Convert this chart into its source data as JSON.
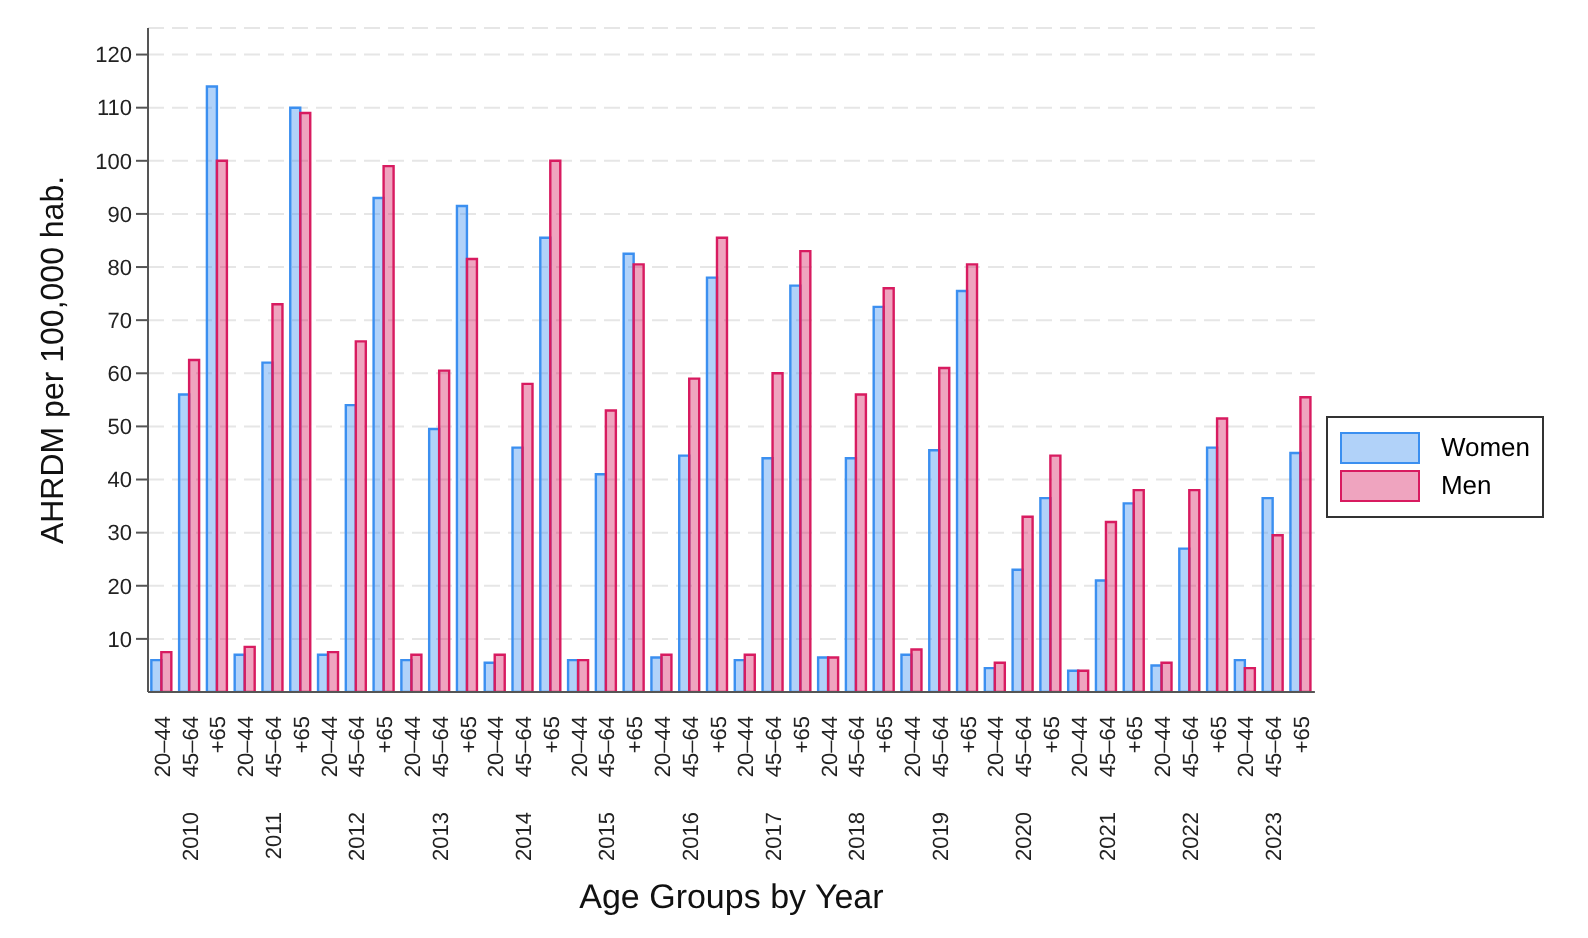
{
  "chart_data": {
    "type": "bar",
    "xlabel": "Age Groups by Year",
    "ylabel": "AHRDM per 100,000 hab.",
    "categories": [
      "20–44",
      "45–64",
      "+65",
      "20–44",
      "45–64",
      "+65",
      "20–44",
      "45–64",
      "+65",
      "20–44",
      "45–64",
      "+65",
      "20–44",
      "45–64",
      "+65",
      "20–44",
      "45–64",
      "+65",
      "20–44",
      "45–64",
      "+65",
      "20–44",
      "45–64",
      "+65",
      "20–44",
      "45–64",
      "+65",
      "20–44",
      "45–64",
      "+65",
      "20–44",
      "45–64",
      "+65",
      "20–44",
      "45–64",
      "+65",
      "20–44",
      "45–64",
      "+65",
      "20–44",
      "45–64",
      "+65"
    ],
    "annotations": [
      "2010",
      "2011",
      "2012",
      "2013",
      "2014",
      "2015",
      "2016",
      "2017",
      "2018",
      "2019",
      "2020",
      "2021",
      "2022",
      "2023"
    ],
    "series": [
      {
        "name": "Women",
        "color": "#3b8ff0",
        "values": [
          6,
          56,
          114,
          7,
          62,
          110,
          7,
          54,
          93,
          6,
          49.5,
          91.5,
          5.5,
          46,
          85.5,
          6,
          41,
          82.5,
          6.5,
          44.5,
          78,
          6,
          44,
          76.5,
          6.5,
          44,
          72.5,
          7,
          45.5,
          75.5,
          4.5,
          23,
          36.5,
          4,
          21,
          35.5,
          5,
          27,
          46,
          6,
          36.5,
          45
        ]
      },
      {
        "name": "Men",
        "color": "#d81b60",
        "values": [
          7.5,
          62.5,
          100,
          8.5,
          73,
          109,
          7.5,
          66,
          99,
          7,
          60.5,
          81.5,
          7,
          58,
          100,
          6,
          53,
          80.5,
          7,
          59,
          85.5,
          7,
          60,
          83,
          6.5,
          56,
          76,
          8,
          61,
          80.5,
          5.5,
          33,
          44.5,
          4,
          32,
          38,
          5.5,
          38,
          51.5,
          4.5,
          29.5,
          55.5
        ]
      }
    ],
    "ylim": [
      0,
      125
    ],
    "yticks": [
      10,
      20,
      30,
      40,
      50,
      60,
      70,
      80,
      90,
      100,
      110,
      120
    ],
    "grid": "y",
    "legend": "right"
  }
}
